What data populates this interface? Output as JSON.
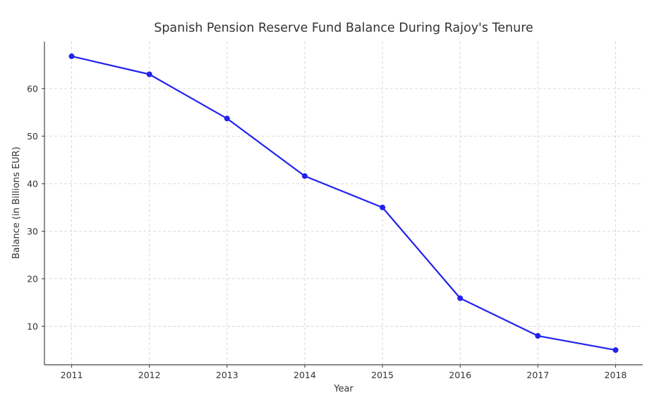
{
  "chart_data": {
    "type": "line",
    "title": "Spanish Pension Reserve Fund Balance During Rajoy's Tenure",
    "xlabel": "Year",
    "ylabel": "Balance (in Billions EUR)",
    "x": [
      2011,
      2012,
      2013,
      2014,
      2015,
      2016,
      2017,
      2018
    ],
    "values": [
      66.8,
      63.0,
      53.7,
      41.6,
      35.0,
      15.9,
      8.0,
      5.0
    ],
    "xticks": [
      "2011",
      "2012",
      "2013",
      "2014",
      "2015",
      "2016",
      "2017",
      "2018"
    ],
    "yticks": [
      10,
      20,
      30,
      40,
      50,
      60
    ],
    "xlim": [
      2010.65,
      2018.35
    ],
    "ylim": [
      1.91,
      69.89
    ],
    "grid": true,
    "grid_style": "dashed",
    "legend": false,
    "line_color": "#2222ee",
    "marker": "circle",
    "marker_radius": 4,
    "line_width": 2.2,
    "grid_color": "#d6d6d6",
    "axis_color": "#454545",
    "text_color": "#333333",
    "background_color": "#ffffff"
  }
}
